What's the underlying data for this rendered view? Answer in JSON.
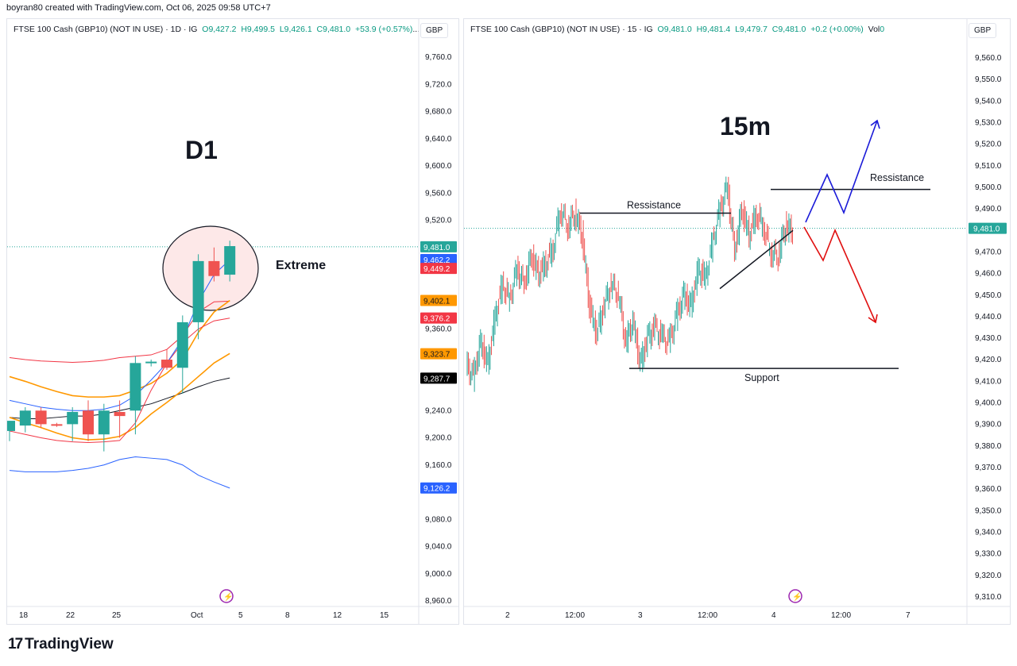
{
  "header": {
    "text": "boyran80 created with TradingView.com, Oct 06, 2025 09:58 UTC+7"
  },
  "brand": {
    "name": "TradingView",
    "logo_icon": "tradingview-logo-icon"
  },
  "colors": {
    "up": "#26a69a",
    "down": "#ef5350",
    "price_line": "#26a69a",
    "blue": "#2962ff",
    "orange": "#ff9800",
    "red": "#f23645"
  },
  "left": {
    "legend": {
      "symbol": "FTSE 100 Cash (GBP10) (NOT IN USE) · 1D · IG",
      "o": "O9,427.2",
      "h": "H9,499.5",
      "l": "L9,426.1",
      "c": "C9,481.0",
      "chg": "+53.9 (+0.57%)",
      "more": "..."
    },
    "currency": "GBP",
    "title": "D1",
    "annotation": "Extreme",
    "footer_icon": "lightning-icon"
  },
  "right": {
    "legend": {
      "symbol": "FTSE 100 Cash (GBP10) (NOT IN USE) · 15 · IG",
      "o": "O9,481.0",
      "h": "H9,481.4",
      "l": "L9,479.7",
      "c": "C9,481.0",
      "chg": "+0.2 (+0.00%)",
      "vol": "Vol",
      "vol_value": "0"
    },
    "currency": "GBP",
    "title": "15m",
    "annotations": {
      "resistance_1": "Ressistance",
      "resistance_2": "Ressistance",
      "support": "Support"
    },
    "footer_icon": "lightning-icon"
  },
  "chart_data": [
    {
      "type": "line",
      "title": "D1",
      "currency": "GBP",
      "ylim": [
        8940,
        9790
      ],
      "y_ticks": [
        "9,760.0",
        "9,720.0",
        "9,680.0",
        "9,640.0",
        "9,600.0",
        "9,560.0",
        "9,520.0",
        "9,360.0",
        "9,240.0",
        "9,200.0",
        "9,160.0",
        "9,080.0",
        "9,040.0",
        "9,000.0",
        "8,960.0"
      ],
      "y_tick_values": [
        9760,
        9720,
        9680,
        9640,
        9600,
        9560,
        9520,
        9360,
        9240,
        9200,
        9160,
        9080,
        9040,
        9000,
        8960
      ],
      "x_ticks": [
        "18",
        "22",
        "25",
        "Oct",
        "5",
        "8",
        "12",
        "15"
      ],
      "price_labels": [
        {
          "text": "9,481.0",
          "value": 9481.0,
          "color": "#26a69a",
          "fg": "#ffffff"
        },
        {
          "text": "9,462.2",
          "value": 9462.2,
          "color": "#2962ff",
          "fg": "#ffffff"
        },
        {
          "text": "9,449.2",
          "value": 9449.2,
          "color": "#f23645",
          "fg": "#ffffff"
        },
        {
          "text": "9,402.1",
          "value": 9402.1,
          "color": "#ff9800",
          "fg": "#131722"
        },
        {
          "text": "9,376.2",
          "value": 9376.2,
          "color": "#f23645",
          "fg": "#ffffff"
        },
        {
          "text": "9,323.7",
          "value": 9323.7,
          "color": "#ff9800",
          "fg": "#131722"
        },
        {
          "text": "9,287.7",
          "value": 9287.7,
          "color": "#000000",
          "fg": "#ffffff"
        },
        {
          "text": "9,126.2",
          "value": 9126.2,
          "color": "#2962ff",
          "fg": "#ffffff"
        }
      ],
      "candles": [
        {
          "o": 9210,
          "h": 9225,
          "l": 9195,
          "c": 9225
        },
        {
          "o": 9218,
          "h": 9245,
          "l": 9208,
          "c": 9240
        },
        {
          "o": 9240,
          "h": 9245,
          "l": 9215,
          "c": 9220
        },
        {
          "o": 9220,
          "h": 9222,
          "l": 9216,
          "c": 9218
        },
        {
          "o": 9220,
          "h": 9245,
          "l": 9195,
          "c": 9238
        },
        {
          "o": 9240,
          "h": 9255,
          "l": 9195,
          "c": 9205
        },
        {
          "o": 9205,
          "h": 9250,
          "l": 9180,
          "c": 9240
        },
        {
          "o": 9238,
          "h": 9255,
          "l": 9200,
          "c": 9232
        },
        {
          "o": 9240,
          "h": 9320,
          "l": 9205,
          "c": 9310
        },
        {
          "o": 9310,
          "h": 9315,
          "l": 9305,
          "c": 9312
        },
        {
          "o": 9315,
          "h": 9330,
          "l": 9300,
          "c": 9303
        },
        {
          "o": 9303,
          "h": 9380,
          "l": 9265,
          "c": 9370
        },
        {
          "o": 9370,
          "h": 9470,
          "l": 9345,
          "c": 9460
        },
        {
          "o": 9460,
          "h": 9480,
          "l": 9430,
          "c": 9438
        },
        {
          "o": 9440,
          "h": 9490,
          "l": 9430,
          "c": 9482
        }
      ],
      "series": [
        {
          "color": "#f23645",
          "values": [
            9318,
            9315,
            9313,
            9312,
            9311,
            9312,
            9314,
            9318,
            9320,
            9322,
            9330,
            9350,
            9385,
            9400,
            9401
          ]
        },
        {
          "color": "#ff9800",
          "values": [
            9290,
            9283,
            9275,
            9268,
            9262,
            9260,
            9260,
            9262,
            9270,
            9280,
            9295,
            9315,
            9355,
            9385,
            9402
          ]
        },
        {
          "color": "#131722",
          "values": [
            9230,
            9228,
            9228,
            9230,
            9232,
            9232,
            9235,
            9240,
            9245,
            9250,
            9258,
            9266,
            9275,
            9283,
            9288
          ]
        },
        {
          "color": "#ff9800",
          "values": [
            9230,
            9222,
            9215,
            9207,
            9200,
            9197,
            9198,
            9202,
            9215,
            9235,
            9252,
            9270,
            9290,
            9310,
            9324
          ]
        },
        {
          "color": "#f23645",
          "values": [
            9210,
            9205,
            9200,
            9196,
            9194,
            9193,
            9194,
            9196,
            9222,
            9270,
            9310,
            9340,
            9360,
            9372,
            9376
          ]
        },
        {
          "color": "#2962ff",
          "values": [
            9255,
            9250,
            9245,
            9242,
            9240,
            9240,
            9242,
            9248,
            9262,
            9285,
            9310,
            9345,
            9400,
            9440,
            9462
          ]
        },
        {
          "color": "#2962ff",
          "values": [
            9152,
            9150,
            9150,
            9150,
            9152,
            9155,
            9160,
            9168,
            9172,
            9170,
            9168,
            9160,
            9145,
            9135,
            9126
          ]
        }
      ]
    },
    {
      "type": "line",
      "title": "15m",
      "currency": "GBP",
      "ylim": [
        9302,
        9572
      ],
      "y_ticks": [
        "9,560.0",
        "9,550.0",
        "9,540.0",
        "9,530.0",
        "9,520.0",
        "9,510.0",
        "9,500.0",
        "9,490.0",
        "9,470.0",
        "9,460.0",
        "9,450.0",
        "9,440.0",
        "9,430.0",
        "9,420.0",
        "9,410.0",
        "9,400.0",
        "9,390.0",
        "9,380.0",
        "9,370.0",
        "9,360.0",
        "9,350.0",
        "9,340.0",
        "9,330.0",
        "9,320.0",
        "9,310.0"
      ],
      "y_tick_values": [
        9560,
        9550,
        9540,
        9530,
        9520,
        9510,
        9500,
        9490,
        9470,
        9460,
        9450,
        9440,
        9430,
        9420,
        9410,
        9400,
        9390,
        9380,
        9370,
        9360,
        9350,
        9340,
        9330,
        9320,
        9310
      ],
      "x_ticks": [
        "2",
        "12:00",
        "3",
        "12:00",
        "4",
        "12:00",
        "7"
      ],
      "price_labels": [
        {
          "text": "9,481.0",
          "value": 9481.0,
          "color": "#26a69a",
          "fg": "#ffffff"
        }
      ],
      "price_path": [
        9418,
        9412,
        9428,
        9418,
        9440,
        9455,
        9448,
        9462,
        9455,
        9468,
        9460,
        9465,
        9472,
        9490,
        9482,
        9488,
        9478,
        9445,
        9432,
        9445,
        9455,
        9450,
        9428,
        9438,
        9418,
        9430,
        9435,
        9430,
        9428,
        9440,
        9450,
        9445,
        9462,
        9458,
        9475,
        9490,
        9500,
        9470,
        9490,
        9478,
        9488,
        9482,
        9470,
        9468,
        9482,
        9480
      ],
      "levels": [
        {
          "name": "Ressistance",
          "value": 9488
        },
        {
          "name": "Ressistance",
          "value": 9499
        },
        {
          "name": "Support",
          "value": 9416
        }
      ]
    }
  ]
}
